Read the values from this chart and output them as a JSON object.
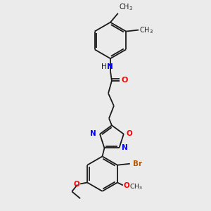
{
  "background_color": "#ebebeb",
  "bond_color": "#1a1a1a",
  "atom_colors": {
    "N": "#0000ff",
    "O": "#ff0000",
    "Br": "#b35900",
    "C": "#1a1a1a"
  },
  "lw": 1.3,
  "fs": 7.5,
  "fig_width": 3.0,
  "fig_height": 3.0,
  "dpi": 100
}
